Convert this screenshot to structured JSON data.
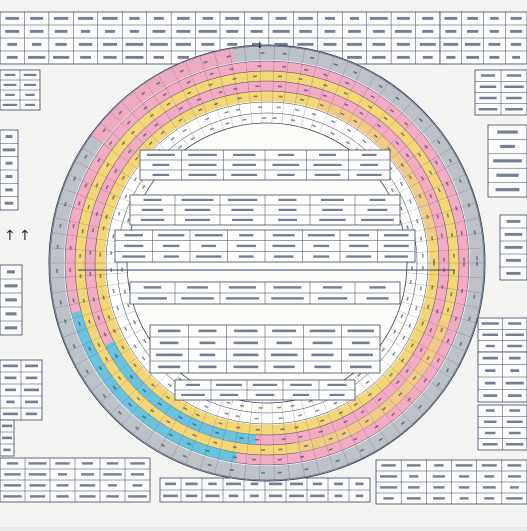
{
  "diagram": {
    "title": "",
    "subtitle": "",
    "ring_colors": {
      "pink": "#f2a7c0",
      "yellow": "#f4d470",
      "cyan": "#5cc4e0",
      "grey": "#b9bfc6",
      "orange": "#f1c98a",
      "line": "#3b4660"
    },
    "arrow_glyph": "↑",
    "down_glyph": "↓"
  }
}
